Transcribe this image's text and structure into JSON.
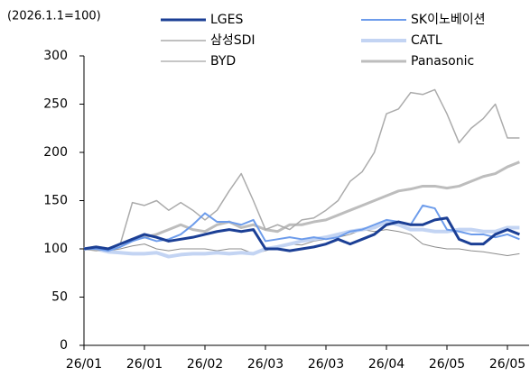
{
  "chart_data": {
    "type": "line",
    "y_label": "(2026.1.1=100)",
    "categories": [
      "26/01",
      null,
      null,
      null,
      null,
      "26/01",
      null,
      null,
      null,
      null,
      "26/02",
      null,
      null,
      null,
      null,
      "26/03",
      null,
      null,
      null,
      null,
      "26/03",
      null,
      null,
      null,
      null,
      "26/04",
      null,
      null,
      null,
      null,
      "26/05",
      null,
      null,
      null,
      null,
      "26/05",
      null
    ],
    "ylim": [
      0,
      300
    ],
    "yticks": [
      0,
      50,
      100,
      150,
      200,
      250,
      300
    ],
    "grid": false,
    "series": [
      {
        "name": "LGES",
        "color": "#1b3f95",
        "line_width": 3,
        "values": [
          100,
          102,
          100,
          105,
          110,
          115,
          112,
          108,
          110,
          112,
          115,
          118,
          120,
          118,
          120,
          100,
          100,
          98,
          100,
          102,
          105,
          110,
          105,
          110,
          115,
          125,
          128,
          125,
          125,
          130,
          132,
          110,
          105,
          105,
          115,
          120,
          115
        ]
      },
      {
        "name": "SK이노베이션",
        "color": "#6d9ceb",
        "line_width": 2,
        "values": [
          100,
          100,
          98,
          102,
          108,
          112,
          108,
          110,
          115,
          125,
          137,
          128,
          128,
          125,
          130,
          108,
          110,
          112,
          110,
          112,
          110,
          112,
          118,
          120,
          125,
          130,
          128,
          125,
          145,
          142,
          120,
          118,
          115,
          115,
          112,
          115,
          110
        ]
      },
      {
        "name": "삼성SDI",
        "color": "#ababab",
        "line_width": 1.5,
        "values": [
          100,
          98,
          100,
          105,
          148,
          145,
          150,
          140,
          148,
          140,
          130,
          140,
          160,
          178,
          150,
          120,
          125,
          120,
          130,
          132,
          140,
          150,
          170,
          180,
          200,
          240,
          245,
          262,
          260,
          265,
          240,
          210,
          225,
          235,
          250,
          215,
          215
        ]
      },
      {
        "name": "CATL",
        "color": "#c3d4f3",
        "line_width": 4,
        "values": [
          100,
          100,
          97,
          96,
          95,
          95,
          96,
          92,
          94,
          95,
          95,
          96,
          95,
          96,
          95,
          100,
          102,
          105,
          108,
          110,
          112,
          115,
          118,
          120,
          122,
          128,
          125,
          120,
          120,
          118,
          118,
          120,
          120,
          118,
          118,
          122,
          122
        ]
      },
      {
        "name": "BYD",
        "color": "#8c8c8c",
        "line_width": 1,
        "values": [
          100,
          100,
          98,
          100,
          103,
          105,
          100,
          98,
          100,
          100,
          100,
          98,
          100,
          100,
          95,
          98,
          102,
          105,
          104,
          108,
          110,
          112,
          115,
          120,
          118,
          120,
          118,
          115,
          105,
          102,
          100,
          100,
          98,
          97,
          95,
          93,
          95
        ]
      },
      {
        "name": "Panasonic",
        "color": "#bdbdbd",
        "line_width": 3,
        "values": [
          100,
          102,
          100,
          105,
          110,
          112,
          115,
          120,
          125,
          120,
          118,
          125,
          128,
          122,
          125,
          120,
          118,
          125,
          125,
          128,
          130,
          135,
          140,
          145,
          150,
          155,
          160,
          162,
          165,
          165,
          163,
          165,
          170,
          175,
          178,
          185,
          190
        ]
      }
    ]
  }
}
